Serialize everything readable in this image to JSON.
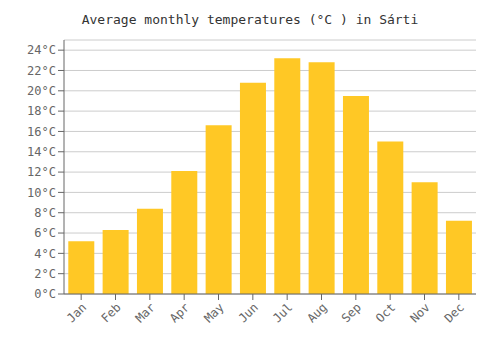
{
  "chart_data": {
    "type": "bar",
    "title": "Average monthly temperatures (°C ) in Sárti",
    "categories": [
      "Jan",
      "Feb",
      "Mar",
      "Apr",
      "May",
      "Jun",
      "Jul",
      "Aug",
      "Sep",
      "Oct",
      "Nov",
      "Dec"
    ],
    "values": [
      5.2,
      6.3,
      8.4,
      12.1,
      16.6,
      20.8,
      23.2,
      22.8,
      19.5,
      15.0,
      11.0,
      7.2
    ],
    "color": "#FFC825",
    "ylim": [
      0,
      25
    ],
    "yticks": [
      {
        "value": 0,
        "label": "0°C"
      },
      {
        "value": 2,
        "label": "2°C"
      },
      {
        "value": 4,
        "label": "4°C"
      },
      {
        "value": 6,
        "label": "6°C"
      },
      {
        "value": 8,
        "label": "8°C"
      },
      {
        "value": 10,
        "label": "10°C"
      },
      {
        "value": 12,
        "label": "12°C"
      },
      {
        "value": 14,
        "label": "14°C"
      },
      {
        "value": 16,
        "label": "16°C"
      },
      {
        "value": 18,
        "label": "18°C"
      },
      {
        "value": 20,
        "label": "20°C"
      },
      {
        "value": 22,
        "label": "22°C"
      },
      {
        "value": 24,
        "label": "24°C"
      }
    ],
    "grid": true
  }
}
